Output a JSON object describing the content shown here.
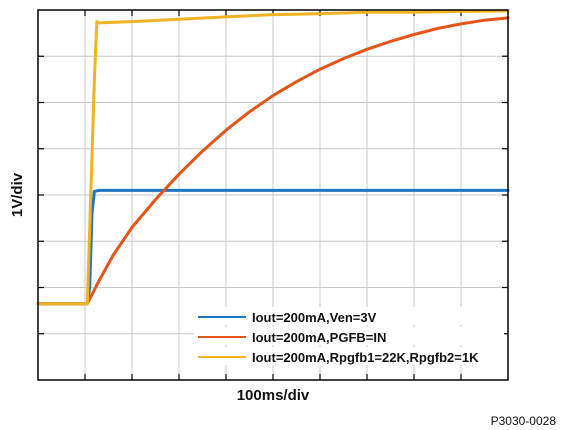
{
  "chart_data": {
    "type": "line",
    "xlabel": "100ms/div",
    "ylabel": "1V/div",
    "figure_id": "P3030-0028",
    "x_divisions": 10,
    "y_divisions": 8,
    "xlim": [
      0,
      10
    ],
    "ylim": [
      0,
      8
    ],
    "x_unit": "div (100ms/div)",
    "y_unit": "div (1V/div)",
    "grid": true,
    "legend_placement": "bottom-right",
    "series": [
      {
        "name": "Iout=200mA,Ven=3V",
        "color": "#1f77c4",
        "x": [
          0,
          1.05,
          1.1,
          1.15,
          1.2,
          1.3,
          10
        ],
        "y": [
          1.65,
          1.65,
          2.0,
          3.6,
          4.08,
          4.1,
          4.1
        ]
      },
      {
        "name": "Iout=200mA,PGFB=IN",
        "color": "#e2561b",
        "x": [
          0,
          1.05,
          1.3,
          1.6,
          2,
          2.5,
          3,
          3.5,
          4,
          4.5,
          5,
          5.5,
          6,
          6.5,
          7,
          7.5,
          8,
          8.5,
          9,
          9.5,
          10
        ],
        "y": [
          1.65,
          1.65,
          2.15,
          2.7,
          3.3,
          3.9,
          4.45,
          4.95,
          5.4,
          5.8,
          6.15,
          6.45,
          6.72,
          6.95,
          7.15,
          7.32,
          7.47,
          7.6,
          7.7,
          7.78,
          7.83
        ]
      },
      {
        "name": "Iout=200mA,Rpgfb1=22K,Rpgfb2=1K",
        "color": "#f0b323",
        "x": [
          0,
          1.05,
          1.2,
          1.25,
          1.3,
          2,
          3,
          4,
          5,
          6,
          7,
          8,
          9,
          10
        ],
        "y": [
          1.65,
          1.65,
          6.5,
          7.75,
          7.72,
          7.75,
          7.8,
          7.85,
          7.9,
          7.92,
          7.95,
          7.95,
          7.97,
          7.98
        ]
      }
    ]
  }
}
